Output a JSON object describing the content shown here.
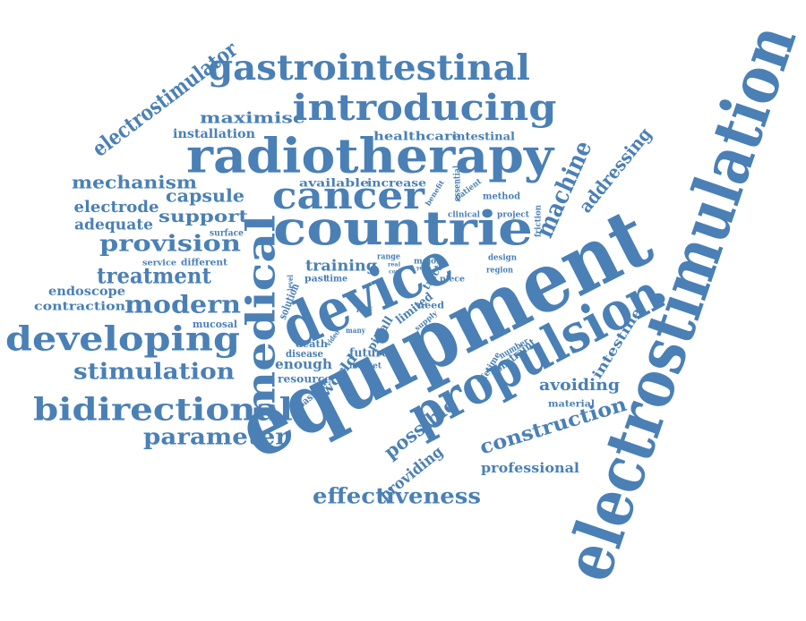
{
  "colors": {
    "ink": "#4a80b5",
    "background": "#ffffff"
  },
  "words": [
    "electrostimulation",
    "equipment",
    "device",
    "radiotherapy",
    "countrie",
    "propulsion",
    "medical",
    "introducing",
    "gastrointestinal",
    "developing",
    "cancer",
    "bidirectional",
    "electrostimulator",
    "stimulation",
    "machine",
    "addressing",
    "parameter",
    "effectiveness",
    "provision",
    "modern",
    "construction",
    "treatment",
    "mechanism",
    "possible",
    "avoiding",
    "providing",
    "professional",
    "intestine",
    "training",
    "maximise",
    "capsule",
    "support",
    "electrode",
    "adequate",
    "installation",
    "healthcare",
    "intestinal",
    "available",
    "increase",
    "endoscope",
    "contraction",
    "mucosal",
    "enough",
    "resource",
    "world",
    "future",
    "death",
    "disease",
    "limited",
    "pitfall",
    "solution",
    "passive",
    "many",
    "market",
    "need",
    "supply",
    "tract",
    "material",
    "constraint",
    "number",
    "lifetime",
    "method",
    "project",
    "clinical",
    "design",
    "region",
    "piece",
    "range",
    "major",
    "past",
    "time",
    "surface",
    "service",
    "different",
    "friction",
    "essential",
    "patient",
    "benefit",
    "level",
    "video",
    "proc",
    "real",
    "cost",
    "year"
  ]
}
